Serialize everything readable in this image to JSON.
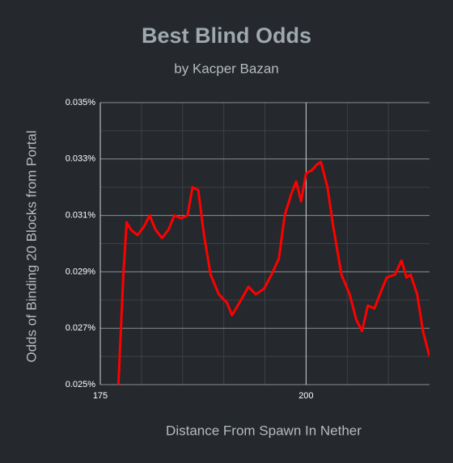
{
  "chart_data": {
    "type": "line",
    "title": "Best Blind Odds",
    "subtitle": "by Kacper Bazan",
    "x_label": "Distance From Spawn In Nether",
    "y_label": "Odds of Binding 20 Blocks from Portal",
    "xlim": [
      175,
      215
    ],
    "ylim": [
      0.025,
      0.035
    ],
    "xticks": [
      175,
      200
    ],
    "xticks_minor": [
      180,
      185,
      190,
      195,
      205,
      210
    ],
    "yticks": [
      {
        "value": 0.025,
        "label": "0.025%"
      },
      {
        "value": 0.027,
        "label": "0.027%"
      },
      {
        "value": 0.029,
        "label": "0.029%"
      },
      {
        "value": 0.031,
        "label": "0.031%"
      },
      {
        "value": 0.033,
        "label": "0.033%"
      },
      {
        "value": 0.035,
        "label": "0.035%"
      }
    ],
    "yticks_minor": [
      0.026,
      0.028,
      0.03,
      0.032,
      0.034
    ],
    "grid": true,
    "series": [
      {
        "color": "#ff0000",
        "x": [
          177.2,
          177.8,
          178.2,
          178.7,
          179.5,
          180.3,
          181.0,
          181.7,
          182.5,
          183.3,
          184.0,
          184.8,
          185.6,
          186.2,
          186.9,
          187.6,
          188.4,
          189.4,
          190.4,
          191.0,
          191.9,
          193.0,
          193.9,
          194.9,
          195.8,
          196.7,
          197.4,
          198.2,
          198.8,
          199.4,
          200.0,
          200.7,
          201.3,
          201.8,
          202.6,
          203.3,
          204.3,
          205.3,
          206.1,
          206.8,
          207.5,
          208.3,
          209.1,
          209.8,
          210.8,
          211.6,
          212.2,
          212.7,
          213.5,
          214.2,
          215.0
        ],
        "values": [
          0.025,
          0.0289,
          0.03076,
          0.0305,
          0.0303,
          0.0306,
          0.031,
          0.0305,
          0.0302,
          0.0305,
          0.031,
          0.0309,
          0.031,
          0.032,
          0.0319,
          0.0303,
          0.0289,
          0.0282,
          0.0279,
          0.02746,
          0.0279,
          0.02847,
          0.0282,
          0.0284,
          0.0289,
          0.02947,
          0.031,
          0.03176,
          0.0322,
          0.0315,
          0.0325,
          0.0326,
          0.0328,
          0.0329,
          0.032,
          0.0306,
          0.0289,
          0.0282,
          0.0273,
          0.0269,
          0.0278,
          0.0277,
          0.0283,
          0.0288,
          0.0289,
          0.0294,
          0.0288,
          0.0289,
          0.0282,
          0.0269,
          0.026
        ]
      }
    ]
  }
}
